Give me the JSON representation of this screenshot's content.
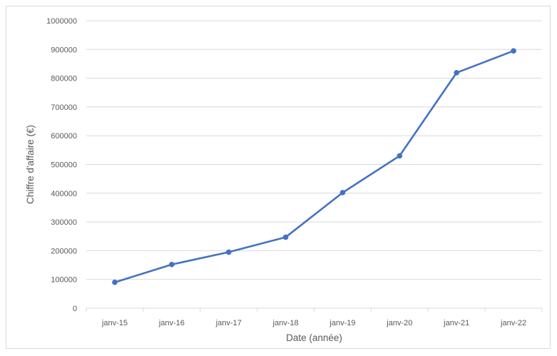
{
  "chart_data": {
    "type": "line",
    "title": "",
    "xlabel": "Date (année)",
    "ylabel": "Chiffre d'affaire (€)",
    "categories": [
      "janv-15",
      "janv-16",
      "janv-17",
      "janv-18",
      "janv-19",
      "janv-20",
      "janv-21",
      "janv-22"
    ],
    "series": [
      {
        "values": [
          90000,
          152000,
          195000,
          247000,
          402000,
          530000,
          819000,
          895000
        ]
      }
    ],
    "ylim": [
      0,
      1000000
    ],
    "yticks": [
      "0",
      "100000",
      "200000",
      "300000",
      "400000",
      "500000",
      "600000",
      "700000",
      "800000",
      "900000",
      "1000000"
    ],
    "grid": "horizontal",
    "legend": "none",
    "colors": {
      "line": "#4472c4",
      "grid": "#d9d9d9",
      "text": "#595959"
    }
  }
}
